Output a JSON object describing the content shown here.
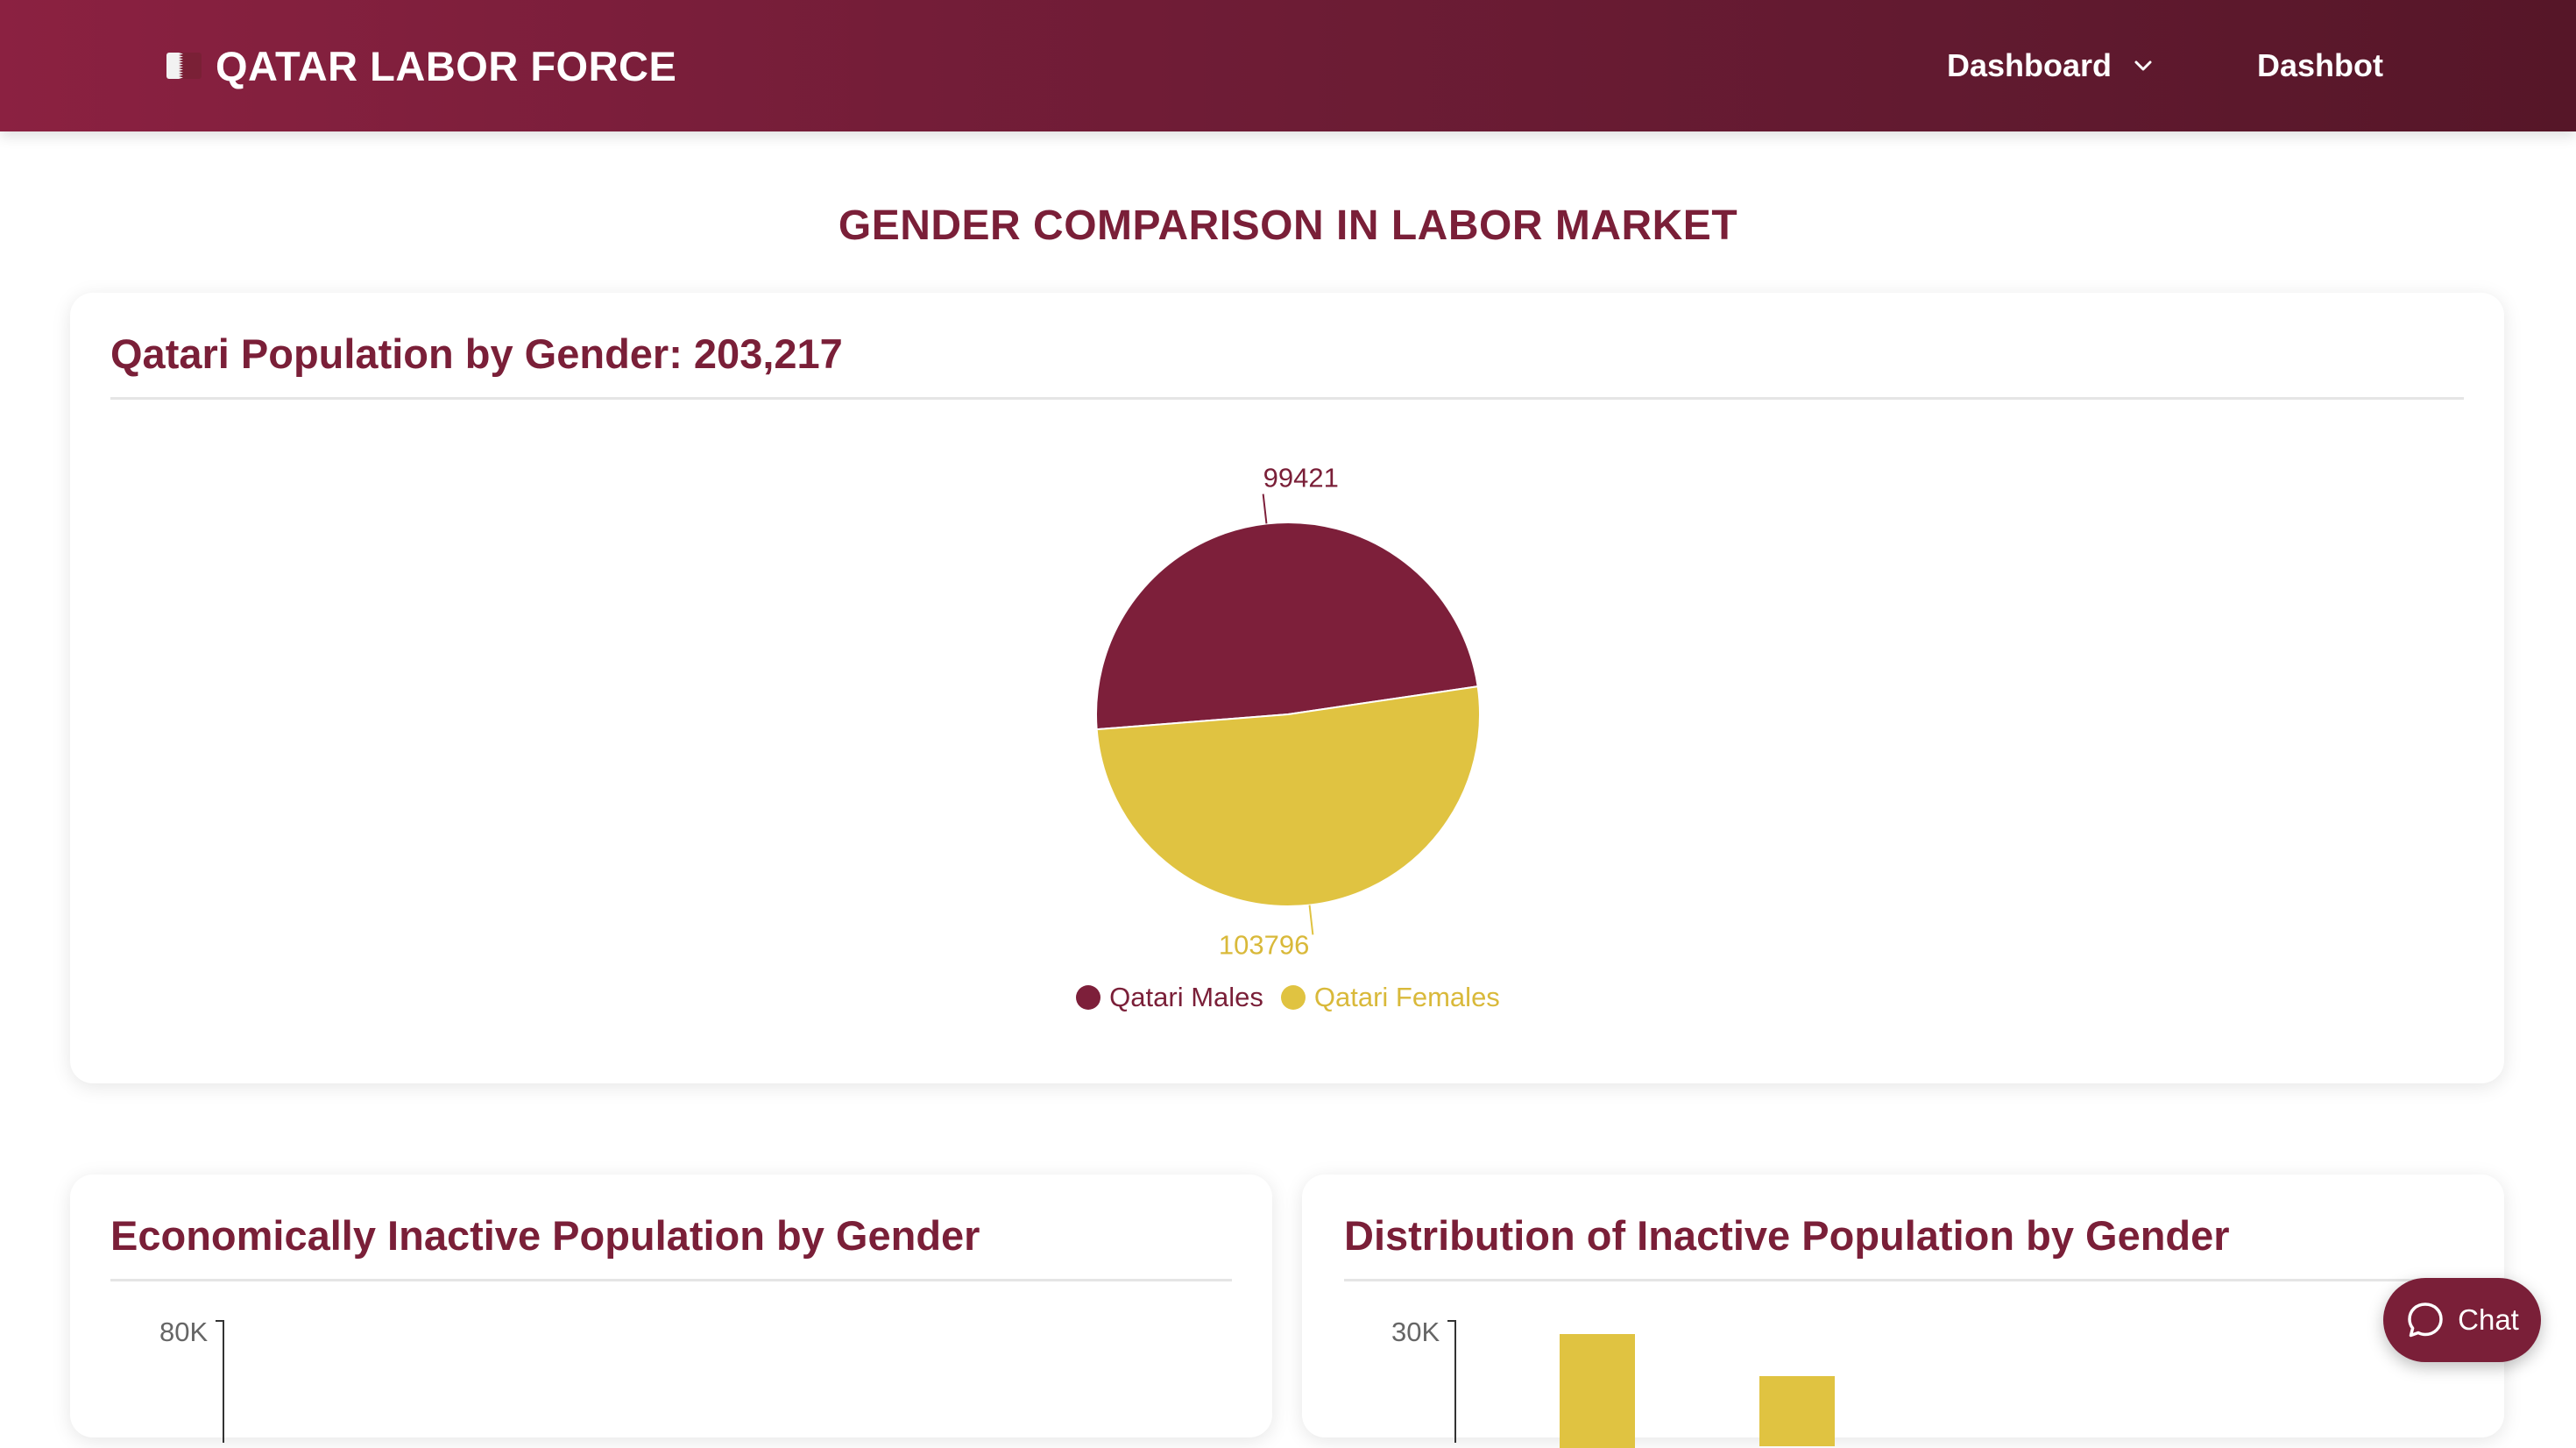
{
  "navbar": {
    "brand_title": "QATAR LABOR FORCE",
    "brand_icon": "qatar-flag-icon",
    "items": [
      {
        "label": "Dashboard",
        "icon": "chevron-down-icon"
      },
      {
        "label": "Dashbot"
      }
    ]
  },
  "page_title": "GENDER COMPARISON IN LABOR MARKET",
  "cards": [
    {
      "title": "Qatari Population by Gender: 203,217"
    },
    {
      "title": "Economically Inactive Population by Gender"
    },
    {
      "title": "Distribution of Inactive Population by Gender"
    }
  ],
  "chart_data": [
    {
      "type": "pie",
      "categories": [
        "Qatari Males",
        "Qatari Females"
      ],
      "values": [
        99421,
        103796
      ],
      "colors": [
        "#7d1f3a",
        "#e0c341"
      ],
      "legend_position": "bottom"
    },
    {
      "type": "bar",
      "y_tick_labels_visible": [
        "80K"
      ],
      "note_visible": "partially cropped chart; only top axis tick visible"
    },
    {
      "type": "bar",
      "y_tick_labels_visible": [
        "30K"
      ],
      "bar_color": "#e0c341",
      "note_visible": "partially cropped chart; only bar tops visible"
    }
  ],
  "chat": {
    "label": "Chat",
    "icon": "chat-bubble-icon"
  },
  "colors": {
    "brand": "#7a1f38",
    "accent_gold": "#e0c341",
    "navbar_start": "#8b2141",
    "navbar_end": "#561628"
  }
}
